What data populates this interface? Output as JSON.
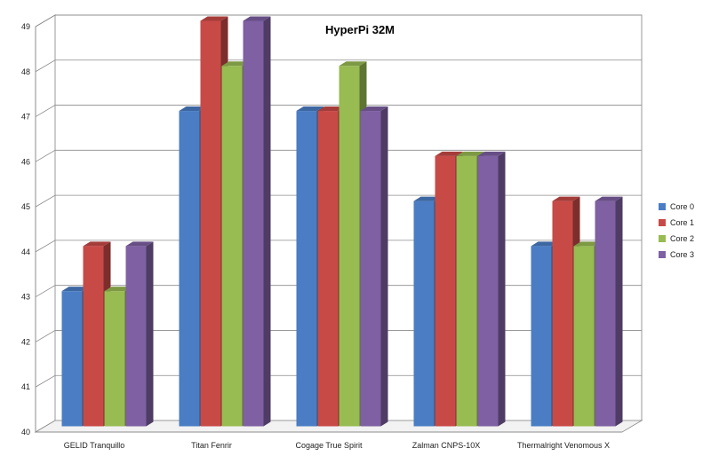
{
  "chart_data": {
    "type": "bar",
    "title": "HyperPi 32M",
    "xlabel": "",
    "ylabel": "",
    "ylim": [
      40,
      49
    ],
    "yticks": [
      40,
      41,
      42,
      43,
      44,
      45,
      46,
      47,
      48,
      49
    ],
    "grid": true,
    "legend_position": "right",
    "categories": [
      "GELID Tranquillo",
      "Titan Fenrir",
      "Cogage True Spirit",
      "Zalman CNPS-10X",
      "Thermalright Venomous X"
    ],
    "series": [
      {
        "name": "Core 0",
        "color": "#4a7dc4",
        "values": [
          43,
          47,
          47,
          45,
          44
        ]
      },
      {
        "name": "Core 1",
        "color": "#c84a47",
        "values": [
          44,
          49,
          47,
          46,
          45
        ]
      },
      {
        "name": "Core 2",
        "color": "#98bb52",
        "values": [
          43,
          48,
          48,
          46,
          44
        ]
      },
      {
        "name": "Core 3",
        "color": "#7e60a3",
        "values": [
          44,
          49,
          47,
          46,
          45
        ]
      }
    ]
  }
}
